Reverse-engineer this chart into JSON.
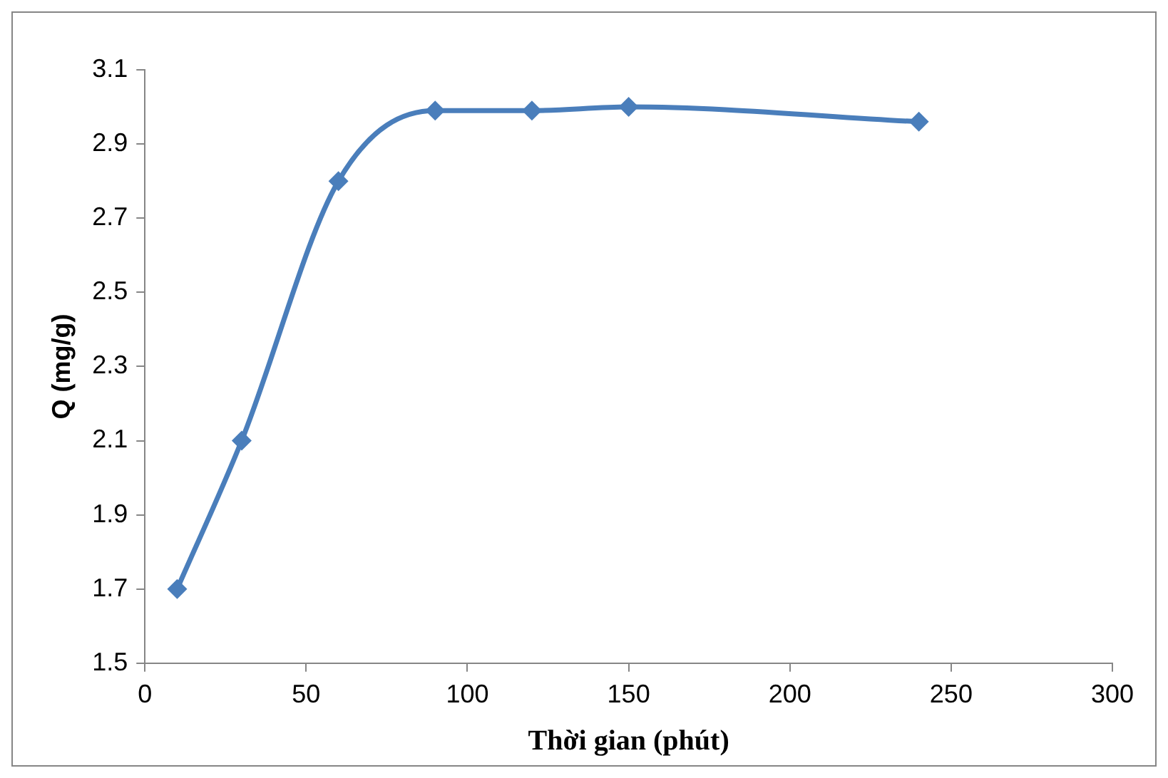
{
  "chart_data": {
    "type": "line",
    "xlabel": "Thời gian (phút)",
    "ylabel": "Q (mg/g)",
    "x": [
      10,
      30,
      60,
      90,
      120,
      150,
      240
    ],
    "series": [
      {
        "color": "#4a7ebb",
        "values": [
          1.7,
          2.1,
          2.8,
          2.99,
          2.99,
          3.0,
          2.96
        ]
      }
    ],
    "xlim": [
      0,
      300
    ],
    "xticks": [
      0,
      50,
      100,
      150,
      200,
      250,
      300
    ],
    "ylim": [
      1.5,
      3.1
    ],
    "yticks": [
      1.5,
      1.7,
      1.9,
      2.1,
      2.3,
      2.5,
      2.7,
      2.9,
      3.1
    ],
    "grid": false,
    "legend": false,
    "marker": "diamond",
    "line_style": "solid"
  }
}
